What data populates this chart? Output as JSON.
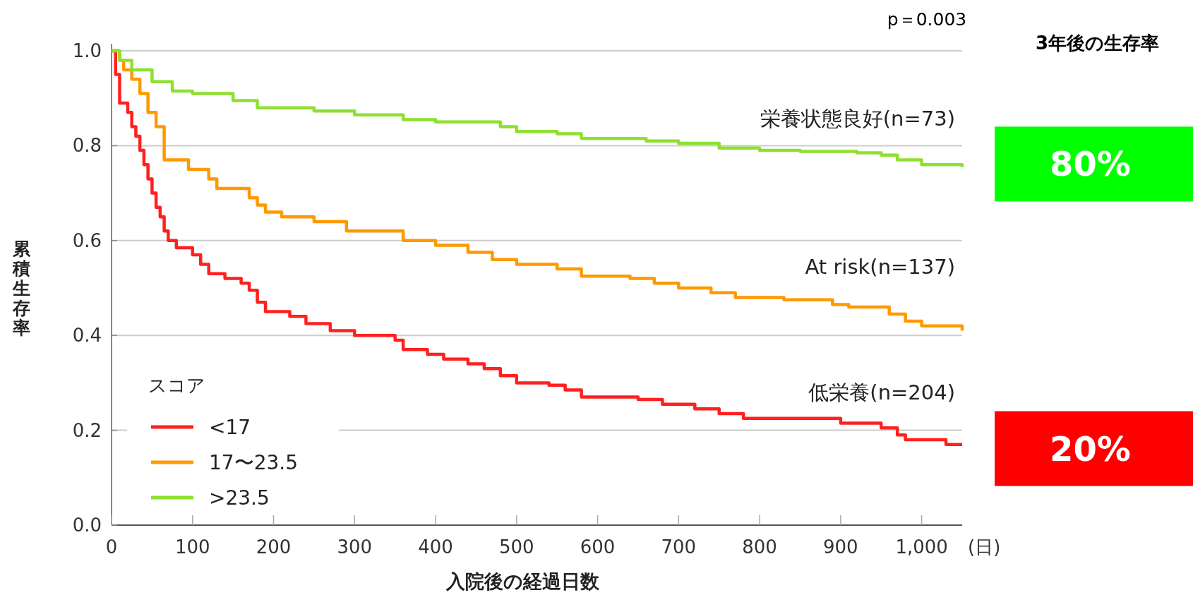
{
  "chart_data": [
    {
      "type": "step",
      "xlabel": "入院後の経過日数",
      "ylabel": "累積生存率",
      "legend_title": "スコア",
      "xlim": [
        0,
        1050
      ],
      "xticks": [
        0,
        100,
        200,
        300,
        400,
        500,
        600,
        700,
        800,
        900,
        {
          "value": 1000,
          "label": "1,000"
        }
      ],
      "ylim": [
        0,
        1.0
      ],
      "yticks": [
        {
          "value": 0,
          "label": "0.0"
        },
        0.2,
        0.4,
        0.6,
        0.8,
        {
          "value": 1.0,
          "label": "1.0"
        }
      ],
      "grid": "y",
      "legend": "bottom left",
      "series": [
        {
          "name": "<17",
          "color": "#ff2020",
          "x": [
            0,
            5,
            10,
            20,
            25,
            30,
            35,
            40,
            45,
            50,
            55,
            60,
            65,
            70,
            80,
            100,
            110,
            120,
            140,
            160,
            170,
            180,
            190,
            220,
            240,
            270,
            300,
            350,
            360,
            390,
            410,
            440,
            460,
            480,
            500,
            540,
            560,
            580,
            650,
            680,
            720,
            750,
            780,
            900,
            950,
            970,
            980,
            1030,
            1050
          ],
          "values": [
            1.0,
            0.95,
            0.89,
            0.87,
            0.84,
            0.82,
            0.79,
            0.76,
            0.73,
            0.7,
            0.67,
            0.65,
            0.62,
            0.6,
            0.585,
            0.57,
            0.55,
            0.53,
            0.52,
            0.51,
            0.495,
            0.47,
            0.45,
            0.44,
            0.425,
            0.41,
            0.4,
            0.39,
            0.37,
            0.36,
            0.35,
            0.34,
            0.33,
            0.315,
            0.3,
            0.295,
            0.285,
            0.27,
            0.265,
            0.255,
            0.245,
            0.235,
            0.225,
            0.215,
            0.205,
            0.19,
            0.18,
            0.17,
            0.17
          ]
        },
        {
          "name": "17〜23.5",
          "color": "#ff9900",
          "x": [
            0,
            10,
            15,
            25,
            35,
            45,
            55,
            65,
            95,
            120,
            130,
            170,
            180,
            190,
            210,
            250,
            290,
            360,
            400,
            440,
            470,
            500,
            550,
            580,
            640,
            670,
            700,
            740,
            770,
            830,
            890,
            910,
            960,
            980,
            1000,
            1050
          ],
          "values": [
            1.0,
            0.98,
            0.96,
            0.94,
            0.91,
            0.87,
            0.84,
            0.77,
            0.75,
            0.73,
            0.71,
            0.69,
            0.675,
            0.66,
            0.65,
            0.64,
            0.62,
            0.6,
            0.59,
            0.575,
            0.56,
            0.55,
            0.54,
            0.525,
            0.52,
            0.51,
            0.5,
            0.49,
            0.48,
            0.475,
            0.465,
            0.46,
            0.445,
            0.43,
            0.42,
            0.41
          ]
        },
        {
          "name": ">23.5",
          "color": "#8ee030",
          "x": [
            0,
            10,
            25,
            50,
            75,
            100,
            150,
            180,
            250,
            300,
            360,
            400,
            480,
            500,
            550,
            580,
            660,
            700,
            750,
            800,
            850,
            920,
            950,
            970,
            1000,
            1050
          ],
          "values": [
            1.0,
            0.98,
            0.96,
            0.935,
            0.915,
            0.91,
            0.895,
            0.88,
            0.873,
            0.865,
            0.855,
            0.85,
            0.84,
            0.83,
            0.825,
            0.815,
            0.81,
            0.805,
            0.795,
            0.79,
            0.788,
            0.785,
            0.78,
            0.77,
            0.76,
            0.755
          ]
        }
      ],
      "annotations": [
        "p＝0.003",
        "(日)",
        "栄養状態良好(n=73)",
        "At risk(n=137)",
        "低栄養(n=204)"
      ]
    },
    {
      "type": "other",
      "title": "3年後の生存率",
      "values": [
        80,
        20
      ],
      "colors": [
        "#00ff00",
        "#ff0000"
      ],
      "value_labels": [
        "80%",
        "20%"
      ]
    }
  ]
}
